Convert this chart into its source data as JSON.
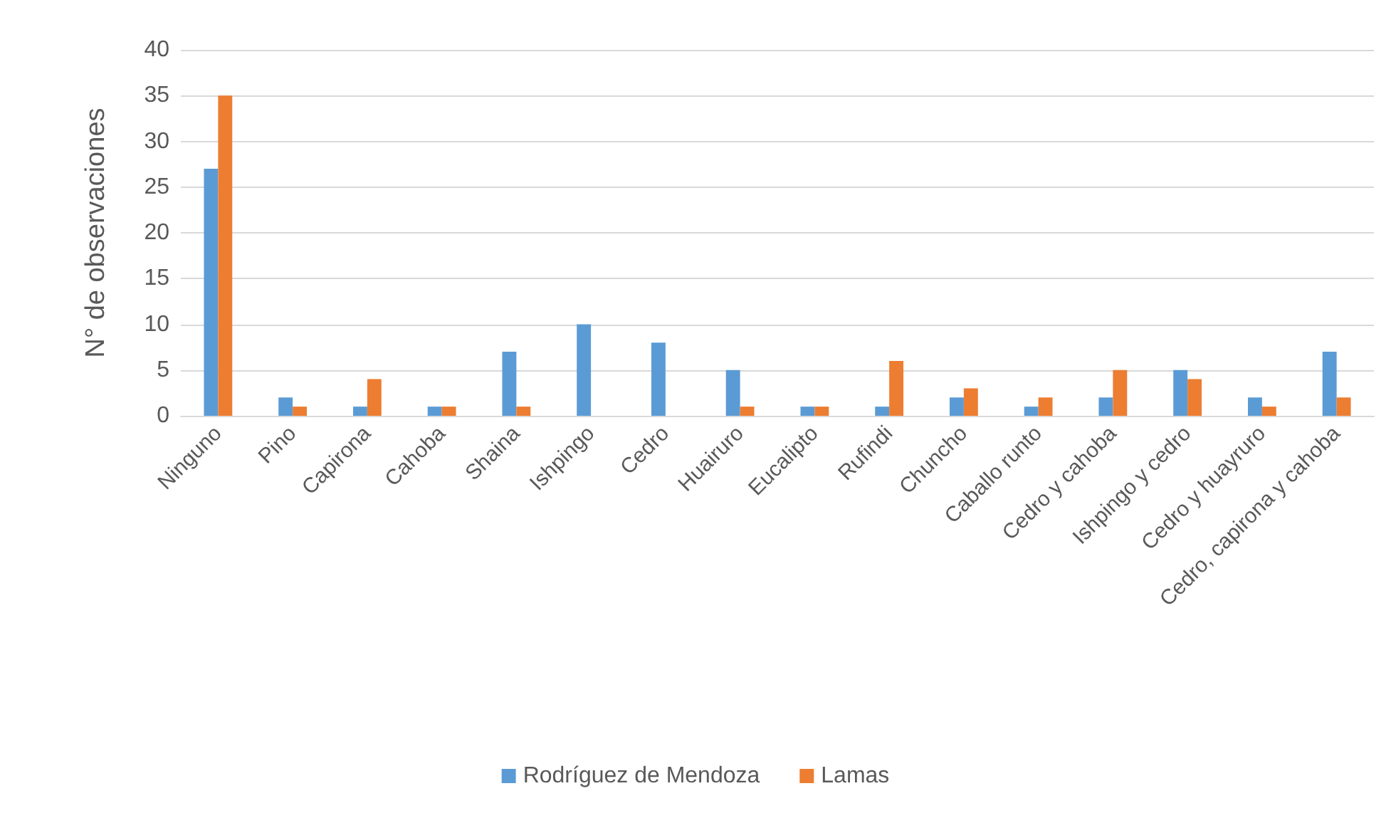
{
  "chart_data": {
    "type": "bar",
    "ylabel": "N° de observaciones",
    "categories": [
      "Ninguno",
      "Pino",
      "Capirona",
      "Cahoba",
      "Shaina",
      "Ishpingo",
      "Cedro",
      "Huairuro",
      "Eucalipto",
      "Rufindi",
      "Chuncho",
      "Caballo runto",
      "Cedro y cahoba",
      "Ishpingo y cedro",
      "Cedro y huayruro",
      "Cedro, capirona y cahoba"
    ],
    "series": [
      {
        "name": "Rodríguez de Mendoza",
        "color": "#5b9bd5",
        "values": [
          27,
          2,
          1,
          1,
          7,
          10,
          8,
          5,
          1,
          1,
          2,
          1,
          2,
          5,
          2,
          7
        ]
      },
      {
        "name": "Lamas",
        "color": "#ed7d31",
        "values": [
          35,
          1,
          4,
          1,
          1,
          0,
          0,
          1,
          1,
          6,
          3,
          2,
          5,
          4,
          1,
          2
        ]
      }
    ],
    "ylim": [
      0,
      40
    ],
    "yticks": [
      0,
      5,
      10,
      15,
      20,
      25,
      30,
      35,
      40
    ],
    "grid": "y",
    "legend": "bottom"
  }
}
